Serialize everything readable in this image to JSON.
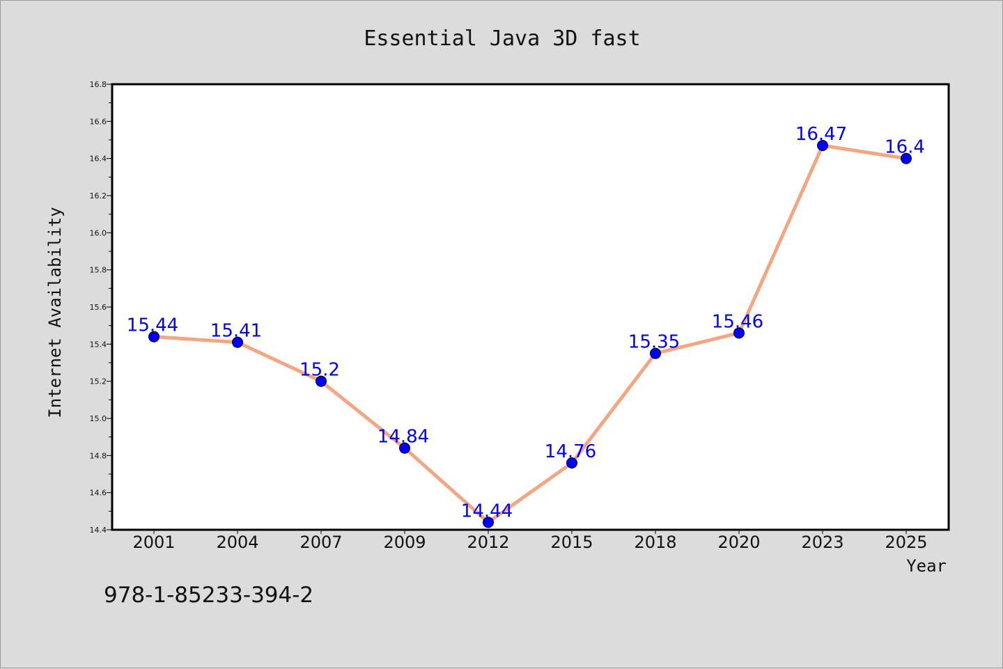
{
  "chart_data": {
    "type": "line",
    "title": "Essential Java 3D fast",
    "xlabel": "Year",
    "ylabel": "Internet Availability",
    "categories": [
      "2001",
      "2004",
      "2007",
      "2009",
      "2012",
      "2015",
      "2018",
      "2020",
      "2023",
      "2025"
    ],
    "series": [
      {
        "values": [
          15.44,
          15.41,
          15.2,
          14.84,
          14.44,
          14.76,
          15.35,
          15.46,
          16.47,
          16.4
        ]
      }
    ],
    "data_labels": [
      "15.44",
      "15.41",
      "15.2",
      "14.84",
      "14.44",
      "14.76",
      "15.35",
      "15.46",
      "16.47",
      "16.4"
    ],
    "ylim": [
      14.4,
      16.8
    ],
    "yticks": [
      "14.4",
      "14.6",
      "14.8",
      "15.0",
      "15.2",
      "15.4",
      "15.6",
      "15.8",
      "16.0",
      "16.2",
      "16.4",
      "16.6",
      "16.8"
    ],
    "grid": false,
    "legend": false,
    "colors": {
      "line": "#f4a582",
      "marker": "#0000ff",
      "marker_edge": "#000000",
      "data_label": "#0000ff",
      "plot_background": "#ffffff",
      "figure_background": "#dcdcdc"
    }
  },
  "footer": {
    "isbn": "978-1-85233-394-2"
  }
}
